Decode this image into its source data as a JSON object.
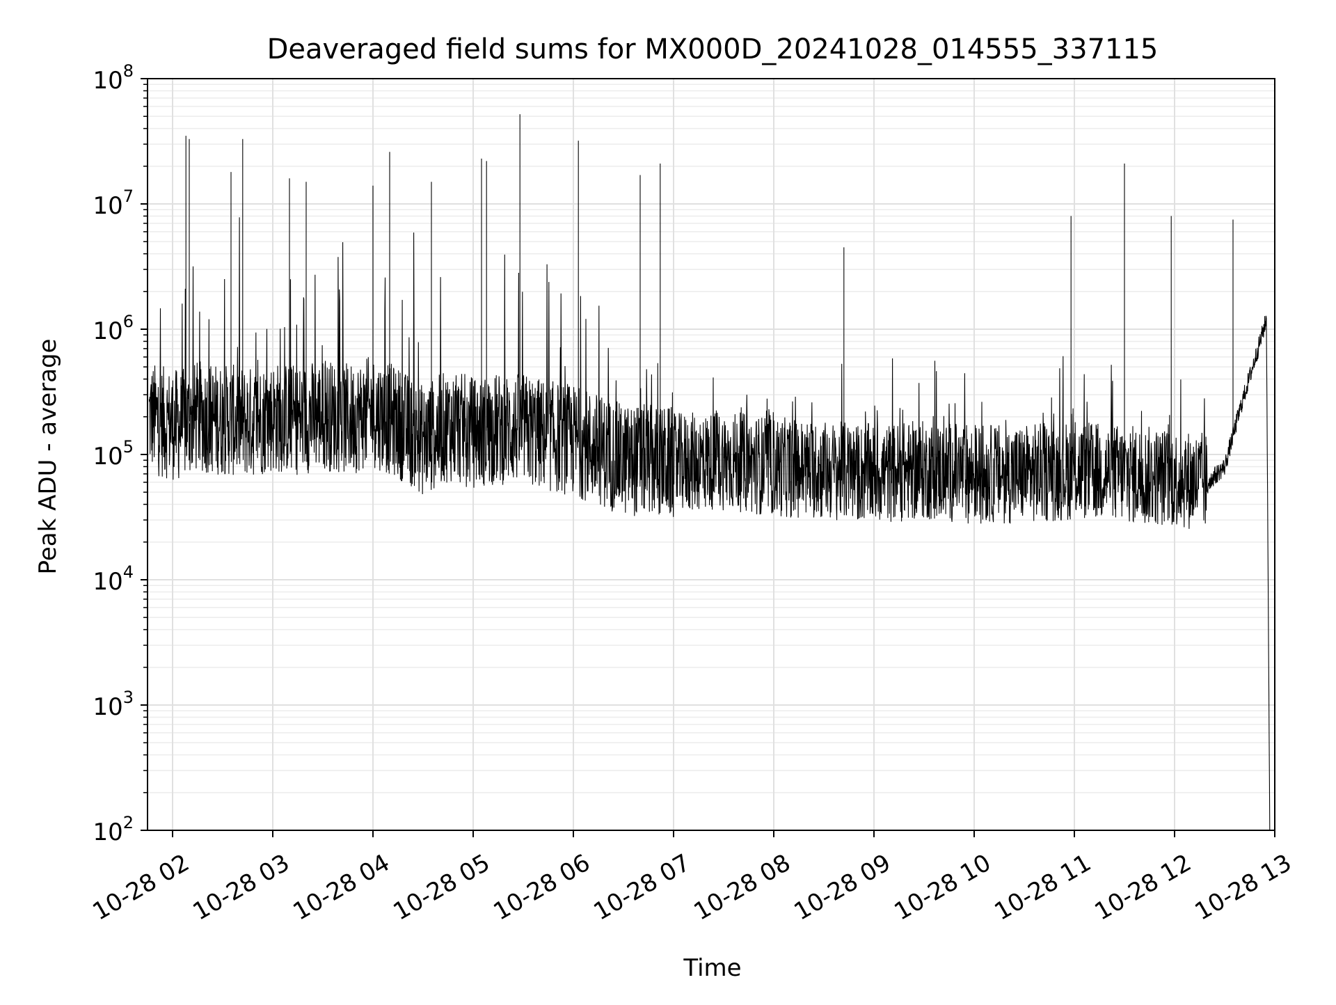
{
  "chart_data": {
    "type": "line",
    "title": "Deaveraged field sums for MX000D_20241028_014555_337115",
    "xlabel": "Time",
    "ylabel": "Peak ADU - average",
    "yscale": "log",
    "ylim": [
      100,
      100000000
    ],
    "xlim": [
      "2024-10-28 01:45",
      "2024-10-28 13:00"
    ],
    "grid": true,
    "legend": "none",
    "line_color": "#000000",
    "y_tick_labels": [
      {
        "base": "10",
        "exp": "2",
        "value": 100
      },
      {
        "base": "10",
        "exp": "3",
        "value": 1000
      },
      {
        "base": "10",
        "exp": "4",
        "value": 10000
      },
      {
        "base": "10",
        "exp": "5",
        "value": 100000
      },
      {
        "base": "10",
        "exp": "6",
        "value": 1000000
      },
      {
        "base": "10",
        "exp": "7",
        "value": 10000000
      },
      {
        "base": "10",
        "exp": "8",
        "value": 100000000
      }
    ],
    "x_tick_labels": [
      {
        "label": "10-28 02",
        "time": "2024-10-28 02:00"
      },
      {
        "label": "10-28 03",
        "time": "2024-10-28 03:00"
      },
      {
        "label": "10-28 04",
        "time": "2024-10-28 04:00"
      },
      {
        "label": "10-28 05",
        "time": "2024-10-28 05:00"
      },
      {
        "label": "10-28 06",
        "time": "2024-10-28 06:00"
      },
      {
        "label": "10-28 07",
        "time": "2024-10-28 07:00"
      },
      {
        "label": "10-28 08",
        "time": "2024-10-28 08:00"
      },
      {
        "label": "10-28 09",
        "time": "2024-10-28 09:00"
      },
      {
        "label": "10-28 10",
        "time": "2024-10-28 10:00"
      },
      {
        "label": "10-28 11",
        "time": "2024-10-28 11:00"
      },
      {
        "label": "10-28 12",
        "time": "2024-10-28 12:00"
      },
      {
        "label": "10-28 13",
        "time": "2024-10-28 13:00"
      }
    ],
    "series": [
      {
        "x": [
          "2024-10-28 01:46",
          "2024-10-28 01:55",
          "2024-10-28 02:05",
          "2024-10-28 02:15",
          "2024-10-28 02:30",
          "2024-10-28 02:45",
          "2024-10-28 03:00",
          "2024-10-28 03:15",
          "2024-10-28 03:30",
          "2024-10-28 03:45",
          "2024-10-28 04:00",
          "2024-10-28 04:15",
          "2024-10-28 04:30",
          "2024-10-28 04:45",
          "2024-10-28 05:00",
          "2024-10-28 05:15",
          "2024-10-28 05:30",
          "2024-10-28 05:45",
          "2024-10-28 06:00",
          "2024-10-28 06:15",
          "2024-10-28 06:30",
          "2024-10-28 06:45",
          "2024-10-28 07:00",
          "2024-10-28 07:30",
          "2024-10-28 08:00",
          "2024-10-28 08:30",
          "2024-10-28 09:00",
          "2024-10-28 09:30",
          "2024-10-28 10:00",
          "2024-10-28 10:30",
          "2024-10-28 11:00",
          "2024-10-28 11:30",
          "2024-10-28 12:00",
          "2024-10-28 12:20",
          "2024-10-28 12:30",
          "2024-10-28 12:40",
          "2024-10-28 12:50",
          "2024-10-28 12:55",
          "2024-10-28 12:57"
        ],
        "y": [
          200000,
          180000,
          170000,
          200000,
          190000,
          180000,
          200000,
          190000,
          210000,
          190000,
          220000,
          180000,
          130000,
          170000,
          150000,
          160000,
          160000,
          140000,
          130000,
          110000,
          90000,
          90000,
          85000,
          90000,
          80000,
          75000,
          70000,
          75000,
          70000,
          70000,
          75000,
          70000,
          65000,
          60000,
          80000,
          250000,
          700000,
          1200000,
          100
        ]
      }
    ],
    "spikes": [
      {
        "x": "2024-10-28 02:08",
        "y": 35000000
      },
      {
        "x": "2024-10-28 02:10",
        "y": 33000000
      },
      {
        "x": "2024-10-28 02:42",
        "y": 33000000
      },
      {
        "x": "2024-10-28 02:35",
        "y": 18000000
      },
      {
        "x": "2024-10-28 03:10",
        "y": 16000000
      },
      {
        "x": "2024-10-28 03:20",
        "y": 15000000
      },
      {
        "x": "2024-10-28 04:10",
        "y": 26000000
      },
      {
        "x": "2024-10-28 04:00",
        "y": 14000000
      },
      {
        "x": "2024-10-28 04:35",
        "y": 15000000
      },
      {
        "x": "2024-10-28 05:05",
        "y": 23000000
      },
      {
        "x": "2024-10-28 05:08",
        "y": 22000000
      },
      {
        "x": "2024-10-28 05:28",
        "y": 52000000
      },
      {
        "x": "2024-10-28 06:03",
        "y": 32000000
      },
      {
        "x": "2024-10-28 06:40",
        "y": 17000000
      },
      {
        "x": "2024-10-28 06:52",
        "y": 21000000
      },
      {
        "x": "2024-10-28 08:42",
        "y": 4500000
      },
      {
        "x": "2024-10-28 10:58",
        "y": 8000000
      },
      {
        "x": "2024-10-28 11:30",
        "y": 21000000
      },
      {
        "x": "2024-10-28 11:58",
        "y": 8000000
      },
      {
        "x": "2024-10-28 12:35",
        "y": 7500000
      }
    ]
  }
}
